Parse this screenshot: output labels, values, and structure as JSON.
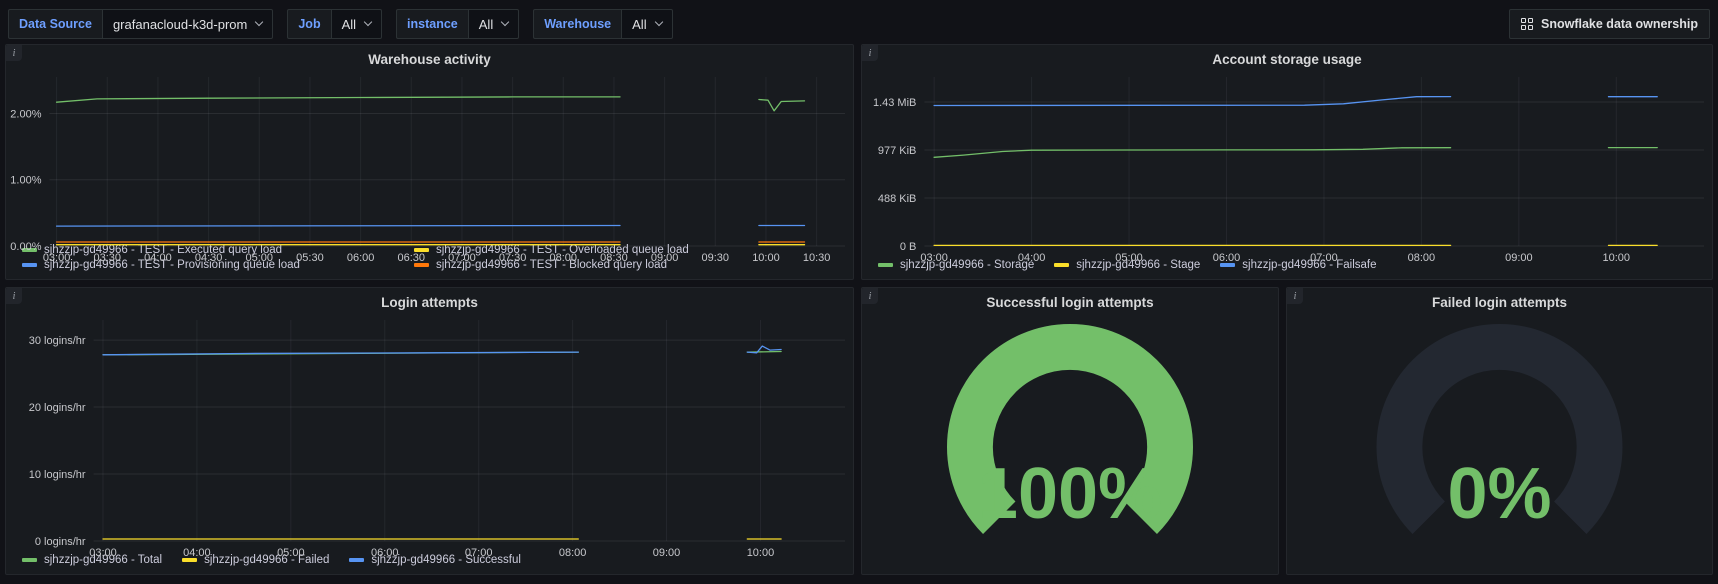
{
  "topbar": {
    "data_source_label": "Data Source",
    "data_source_value": "grafanacloud-k3d-prom",
    "job_label": "Job",
    "job_value": "All",
    "instance_label": "instance",
    "instance_value": "All",
    "warehouse_label": "Warehouse",
    "warehouse_value": "All",
    "ownership_button": "Snowflake data ownership"
  },
  "icons": {
    "info": "i"
  },
  "colors": {
    "green": "#73bf69",
    "yellow": "#fade2a",
    "blue": "#5794f2",
    "orange": "#ff780a",
    "gauge_track": "#232831",
    "grid_h": "rgba(204,204,220,0.10)",
    "grid_v": "rgba(204,204,220,0.07)",
    "axis_text": "#c7c8cc"
  },
  "chart_data": [
    {
      "type": "line",
      "title": "Warehouse activity",
      "unit": "%",
      "xlim": [
        2.93,
        10.78
      ],
      "ylim": [
        0,
        2.55
      ],
      "yticks": [
        {
          "label": "0.00%",
          "v": 0
        },
        {
          "label": "1.00%",
          "v": 1
        },
        {
          "label": "2.00%",
          "v": 2
        }
      ],
      "xticks": [
        {
          "label": "03:00",
          "v": 3
        },
        {
          "label": "03:30",
          "v": 3.5
        },
        {
          "label": "04:00",
          "v": 4
        },
        {
          "label": "04:30",
          "v": 4.5
        },
        {
          "label": "05:00",
          "v": 5
        },
        {
          "label": "05:30",
          "v": 5.5
        },
        {
          "label": "06:00",
          "v": 6
        },
        {
          "label": "06:30",
          "v": 6.5
        },
        {
          "label": "07:00",
          "v": 7
        },
        {
          "label": "07:30",
          "v": 7.5
        },
        {
          "label": "08:00",
          "v": 8
        },
        {
          "label": "08:30",
          "v": 8.5
        },
        {
          "label": "09:00",
          "v": 9
        },
        {
          "label": "09:30",
          "v": 9.5
        },
        {
          "label": "10:00",
          "v": 10
        },
        {
          "label": "10:30",
          "v": 10.5
        }
      ],
      "series": [
        {
          "name": "sjhzzjp-gd49966 - TEST - Executed query load",
          "color": "#73bf69",
          "segments": [
            [
              [
                3,
                2.17
              ],
              [
                3.4,
                2.22
              ],
              [
                4.5,
                2.23
              ],
              [
                6,
                2.24
              ],
              [
                7.5,
                2.25
              ],
              [
                8.56,
                2.25
              ]
            ],
            [
              [
                9.93,
                2.21
              ],
              [
                10.02,
                2.2
              ],
              [
                10.08,
                2.04
              ],
              [
                10.15,
                2.18
              ],
              [
                10.38,
                2.19
              ]
            ]
          ]
        },
        {
          "name": "sjhzzjp-gd49966 - TEST - Overloaded queue load",
          "color": "#fade2a",
          "segments": [
            [
              [
                3,
                0.02
              ],
              [
                8.56,
                0.02
              ]
            ],
            [
              [
                9.93,
                0.02
              ],
              [
                10.38,
                0.02
              ]
            ]
          ]
        },
        {
          "name": "sjhzzjp-gd49966 - TEST - Provisioning queue load",
          "color": "#5794f2",
          "segments": [
            [
              [
                3,
                0.3
              ],
              [
                8.56,
                0.31
              ]
            ],
            [
              [
                9.93,
                0.31
              ],
              [
                10.38,
                0.31
              ]
            ]
          ]
        },
        {
          "name": "sjhzzjp-gd49966 - TEST - Blocked query load",
          "color": "#ff780a",
          "segments": [
            [
              [
                3,
                0.06
              ],
              [
                8.56,
                0.06
              ]
            ],
            [
              [
                9.93,
                0.06
              ],
              [
                10.38,
                0.06
              ]
            ]
          ]
        }
      ]
    },
    {
      "type": "line",
      "title": "Account storage usage",
      "unit": "KiB",
      "xlim": [
        2.9,
        10.9
      ],
      "ylim": [
        0,
        1720
      ],
      "yticks": [
        {
          "label": "0 B",
          "v": 0
        },
        {
          "label": "488 KiB",
          "v": 488
        },
        {
          "label": "977 KiB",
          "v": 977
        },
        {
          "label": "1.43 MiB",
          "v": 1465
        }
      ],
      "xticks": [
        {
          "label": "03:00",
          "v": 3
        },
        {
          "label": "04:00",
          "v": 4
        },
        {
          "label": "05:00",
          "v": 5
        },
        {
          "label": "06:00",
          "v": 6
        },
        {
          "label": "07:00",
          "v": 7
        },
        {
          "label": "08:00",
          "v": 8
        },
        {
          "label": "09:00",
          "v": 9
        },
        {
          "label": "10:00",
          "v": 10
        }
      ],
      "series": [
        {
          "name": "sjhzzjp-gd49966 - Storage",
          "color": "#73bf69",
          "segments": [
            [
              [
                3,
                903
              ],
              [
                3.3,
                925
              ],
              [
                3.7,
                962
              ],
              [
                4,
                975
              ],
              [
                5,
                977
              ],
              [
                6,
                978
              ],
              [
                6.9,
                979
              ],
              [
                7.4,
                984
              ],
              [
                7.8,
                999
              ],
              [
                8.3,
                1000
              ]
            ],
            [
              [
                9.92,
                1001
              ],
              [
                10.42,
                1001
              ]
            ]
          ]
        },
        {
          "name": "sjhzzjp-gd49966 - Stage",
          "color": "#fade2a",
          "segments": [
            [
              [
                3,
                6
              ],
              [
                8.3,
                6
              ]
            ],
            [
              [
                9.92,
                6
              ],
              [
                10.42,
                6
              ]
            ]
          ]
        },
        {
          "name": "sjhzzjp-gd49966 - Failsafe",
          "color": "#5794f2",
          "segments": [
            [
              [
                3,
                1430
              ],
              [
                6.8,
                1433
              ],
              [
                7.2,
                1447
              ],
              [
                7.6,
                1487
              ],
              [
                7.95,
                1519
              ],
              [
                8.3,
                1521
              ]
            ],
            [
              [
                9.92,
                1520
              ],
              [
                10.42,
                1520
              ]
            ]
          ]
        }
      ]
    },
    {
      "type": "line",
      "title": "Login attempts",
      "unit": "logins/hr",
      "xlim": [
        2.9,
        10.9
      ],
      "ylim": [
        0,
        33
      ],
      "yticks": [
        {
          "label": "0 logins/hr",
          "v": 0
        },
        {
          "label": "10 logins/hr",
          "v": 10
        },
        {
          "label": "20 logins/hr",
          "v": 20
        },
        {
          "label": "30 logins/hr",
          "v": 30
        }
      ],
      "xticks": [
        {
          "label": "03:00",
          "v": 3
        },
        {
          "label": "04:00",
          "v": 4
        },
        {
          "label": "05:00",
          "v": 5
        },
        {
          "label": "06:00",
          "v": 6
        },
        {
          "label": "07:00",
          "v": 7
        },
        {
          "label": "08:00",
          "v": 8
        },
        {
          "label": "09:00",
          "v": 9
        },
        {
          "label": "10:00",
          "v": 10
        }
      ],
      "series": [
        {
          "name": "sjhzzjp-gd49966 - Total",
          "color": "#73bf69",
          "segments": [
            [
              [
                3,
                27.8
              ],
              [
                8.06,
                28.2
              ]
            ],
            [
              [
                9.86,
                28.2
              ],
              [
                10.22,
                28.3
              ]
            ]
          ]
        },
        {
          "name": "sjhzzjp-gd49966 - Failed",
          "color": "#fade2a",
          "segments": [
            [
              [
                3,
                0.3
              ],
              [
                8.06,
                0.3
              ]
            ],
            [
              [
                9.86,
                0.3
              ],
              [
                10.22,
                0.3
              ]
            ]
          ]
        },
        {
          "name": "sjhzzjp-gd49966 - Successful",
          "color": "#5794f2",
          "segments": [
            [
              [
                3,
                27.8
              ],
              [
                4.5,
                28
              ],
              [
                6.5,
                28.1
              ],
              [
                8.06,
                28.2
              ]
            ],
            [
              [
                9.86,
                28.2
              ],
              [
                9.96,
                28.1
              ],
              [
                10.02,
                29.1
              ],
              [
                10.1,
                28.5
              ],
              [
                10.22,
                28.6
              ]
            ]
          ]
        }
      ]
    },
    {
      "type": "gauge",
      "title": "Successful login attempts",
      "value": 100,
      "display": "100%",
      "min": 0,
      "max": 100,
      "color": "#73bf69"
    },
    {
      "type": "gauge",
      "title": "Failed login attempts",
      "value": 0,
      "display": "0%",
      "min": 0,
      "max": 100,
      "color": "#73bf69"
    }
  ]
}
